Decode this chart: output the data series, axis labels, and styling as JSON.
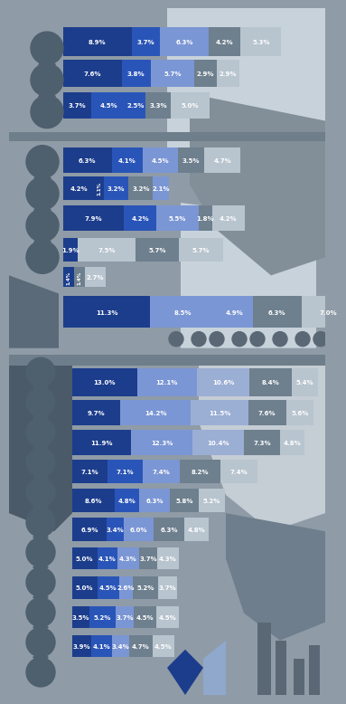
{
  "chart1": {
    "rows": [
      {
        "values": [
          8.9,
          3.7,
          6.3,
          4.2,
          5.3
        ],
        "colors": [
          "#1c3d8c",
          "#2a55b8",
          "#7b96d4",
          "#6e7f8e",
          "#b8c4ce"
        ]
      },
      {
        "values": [
          7.6,
          3.8,
          5.7,
          2.9,
          2.9
        ],
        "colors": [
          "#1c3d8c",
          "#2a55b8",
          "#7b96d4",
          "#6e7f8e",
          "#b8c4ce"
        ]
      },
      {
        "values": [
          3.7,
          4.5,
          2.5,
          3.3,
          5.0
        ],
        "colors": [
          "#1c3d8c",
          "#2a55b8",
          "#2a55b8",
          "#6e7f8e",
          "#b8c4ce"
        ]
      },
      {
        "values": [
          6.3,
          4.1,
          4.5,
          3.5,
          4.7
        ],
        "colors": [
          "#1c3d8c",
          "#2a55b8",
          "#7b96d4",
          "#6e7f8e",
          "#b8c4ce"
        ]
      },
      {
        "values": [
          4.2,
          1.1,
          3.2,
          3.2,
          2.1
        ],
        "colors": [
          "#1c3d8c",
          "#1c3d8c",
          "#2a55b8",
          "#6e7f8e",
          "#7b96d4"
        ]
      },
      {
        "values": [
          7.9,
          4.2,
          5.5,
          1.8,
          4.2
        ],
        "colors": [
          "#1c3d8c",
          "#2a55b8",
          "#7b96d4",
          "#6e7f8e",
          "#b8c4ce"
        ]
      },
      {
        "values": [
          1.9,
          7.5,
          5.7,
          5.7
        ],
        "colors": [
          "#1c3d8c",
          "#b8c4ce",
          "#6e7f8e",
          "#b8c4ce"
        ]
      },
      {
        "values": [
          1.4,
          1.4,
          2.7
        ],
        "colors": [
          "#1c3d8c",
          "#6e7f8e",
          "#b8c4ce"
        ]
      },
      {
        "values": [
          11.3,
          8.5,
          4.9,
          6.3,
          7.0
        ],
        "colors": [
          "#1c3d8c",
          "#7b96d4",
          "#7b96d4",
          "#6e7f8e",
          "#b8c4ce"
        ]
      }
    ],
    "row_starts": [
      0,
      0,
      0,
      0,
      0,
      0,
      0,
      0,
      0
    ]
  },
  "chart2": {
    "rows": [
      {
        "values": [
          13.0,
          12.1,
          10.6,
          8.4,
          5.4
        ],
        "colors": [
          "#1c3d8c",
          "#7b96d4",
          "#9baed4",
          "#6e7f8e",
          "#b8c4ce"
        ]
      },
      {
        "values": [
          9.7,
          14.2,
          11.5,
          7.6,
          5.6
        ],
        "colors": [
          "#1c3d8c",
          "#7b96d4",
          "#9baed4",
          "#6e7f8e",
          "#b8c4ce"
        ]
      },
      {
        "values": [
          11.9,
          12.3,
          10.4,
          7.3,
          4.8
        ],
        "colors": [
          "#1c3d8c",
          "#7b96d4",
          "#9baed4",
          "#6e7f8e",
          "#b8c4ce"
        ]
      },
      {
        "values": [
          7.1,
          7.1,
          7.4,
          8.2,
          7.4
        ],
        "colors": [
          "#1c3d8c",
          "#2a55b8",
          "#7b96d4",
          "#6e7f8e",
          "#b8c4ce"
        ]
      },
      {
        "values": [
          8.6,
          4.8,
          6.3,
          5.8,
          5.2
        ],
        "colors": [
          "#1c3d8c",
          "#2a55b8",
          "#7b96d4",
          "#6e7f8e",
          "#b8c4ce"
        ]
      },
      {
        "values": [
          6.9,
          3.4,
          6.0,
          6.3,
          4.8
        ],
        "colors": [
          "#1c3d8c",
          "#2a55b8",
          "#7b96d4",
          "#6e7f8e",
          "#b8c4ce"
        ]
      },
      {
        "values": [
          5.0,
          4.1,
          4.3,
          3.7,
          4.3
        ],
        "colors": [
          "#1c3d8c",
          "#2a55b8",
          "#7b96d4",
          "#6e7f8e",
          "#b8c4ce"
        ]
      },
      {
        "values": [
          5.0,
          4.5,
          2.6,
          5.2,
          3.7
        ],
        "colors": [
          "#1c3d8c",
          "#2a55b8",
          "#7b96d4",
          "#6e7f8e",
          "#b8c4ce"
        ]
      },
      {
        "values": [
          3.5,
          5.2,
          3.7,
          4.5,
          4.5
        ],
        "colors": [
          "#1c3d8c",
          "#2a55b8",
          "#7b96d4",
          "#6e7f8e",
          "#b8c4ce"
        ]
      },
      {
        "values": [
          3.9,
          4.1,
          3.4,
          4.7,
          4.5
        ],
        "colors": [
          "#1c3d8c",
          "#2a55b8",
          "#7b96d4",
          "#6e7f8e",
          "#b8c4ce"
        ]
      }
    ]
  },
  "bg_color": "#8f9ba6",
  "panel_bg1": "#b8c2cc",
  "panel_bg2": "#b0bac4",
  "left_blob_color": "#4e5f6e",
  "right_blob1_color": "#7a8a96",
  "right_blob2_color": "#c5cdd4",
  "separator_color": "#6e7e8a"
}
